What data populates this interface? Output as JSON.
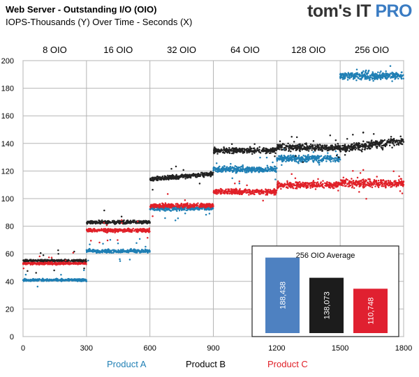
{
  "header": {
    "title": "Web Server - Outstanding I/O (OIO)",
    "subtitle": "IOPS-Thousands (Y) Over Time - Seconds (X)",
    "brand_main": "tom's IT",
    "brand_accent": "PRO"
  },
  "chart_data": {
    "type": "scatter",
    "xlim": [
      0,
      1800
    ],
    "ylim": [
      0,
      200
    ],
    "x_ticks": [
      0,
      300,
      600,
      900,
      1200,
      1500,
      1800
    ],
    "y_ticks": [
      0,
      20,
      40,
      60,
      80,
      100,
      120,
      140,
      160,
      180,
      200
    ],
    "grid": true,
    "sections": [
      {
        "label": "8 OIO",
        "x_range": [
          0,
          300
        ]
      },
      {
        "label": "16 OIO",
        "x_range": [
          300,
          600
        ]
      },
      {
        "label": "32  OIO",
        "x_range": [
          600,
          900
        ]
      },
      {
        "label": "64 OIO",
        "x_range": [
          900,
          1200
        ]
      },
      {
        "label": "128 OIO",
        "x_range": [
          1200,
          1500
        ]
      },
      {
        "label": "256 OIO",
        "x_range": [
          1500,
          1800
        ]
      }
    ],
    "series": [
      {
        "name": "Product  A",
        "color": "#1f7fb4",
        "levels": [
          41,
          62,
          93,
          121,
          129,
          189
        ]
      },
      {
        "name": "Product  B",
        "color": "#222222",
        "levels": [
          55,
          83,
          116,
          135,
          137,
          139
        ]
      },
      {
        "name": "Product  C",
        "color": "#e02028",
        "levels": [
          53,
          77,
          95,
          105,
          110,
          111
        ]
      }
    ],
    "inset": {
      "title": "256 OIO Average",
      "type": "bar",
      "bars": [
        {
          "label": "188,438",
          "value": 188.438,
          "color": "#4e81c1"
        },
        {
          "label": "138,073",
          "value": 138.073,
          "color": "#1c1c1c"
        },
        {
          "label": "110,748",
          "value": 110.748,
          "color": "#e02030"
        }
      ]
    }
  }
}
